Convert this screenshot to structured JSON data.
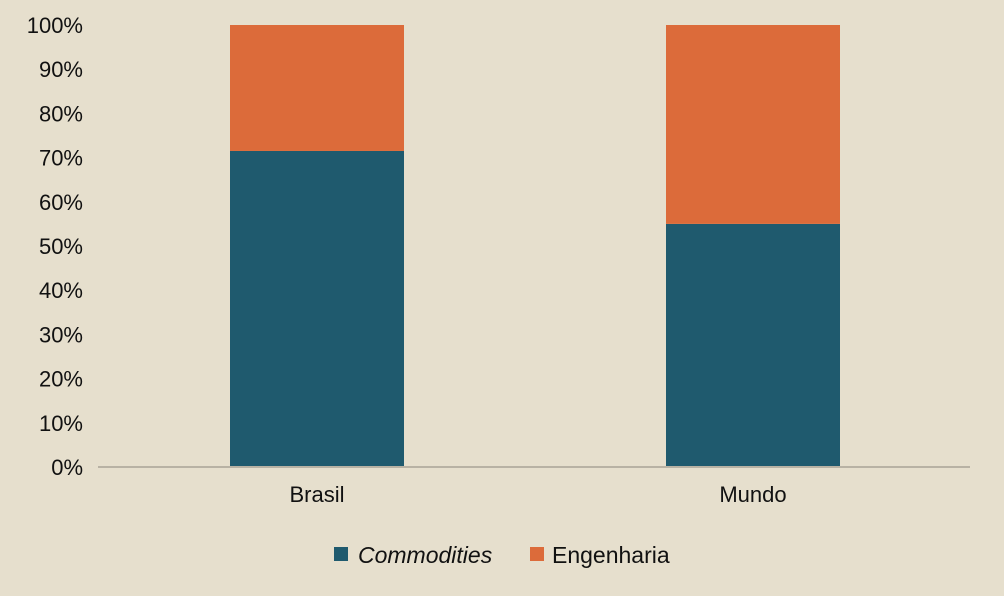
{
  "chart_data": {
    "type": "bar",
    "stacked": true,
    "categories": [
      "Brasil",
      "Mundo"
    ],
    "series": [
      {
        "name": "Commodities",
        "values": [
          71.5,
          55
        ],
        "color": "#1f5a6e"
      },
      {
        "name": "Engenharia",
        "values": [
          28.5,
          45
        ],
        "color": "#dc6b3a"
      }
    ],
    "ylim": [
      0,
      100
    ],
    "yticks": [
      "0%",
      "10%",
      "20%",
      "30%",
      "40%",
      "50%",
      "60%",
      "70%",
      "80%",
      "90%",
      "100%"
    ],
    "grid": false,
    "legend_position": "bottom"
  }
}
